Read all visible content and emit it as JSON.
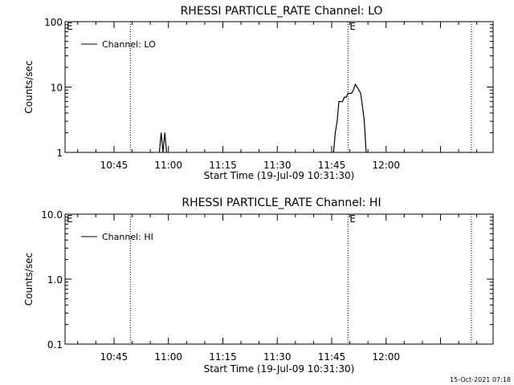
{
  "chart_data": [
    {
      "type": "line",
      "title": "RHESSI PARTICLE_RATE Channel: LO",
      "xlabel": "Start Time (19-Jul-09 10:31:30)",
      "ylabel": "Counts/sec",
      "yscale": "log",
      "ylim": [
        1,
        100
      ],
      "xlim": [
        "10:31:30",
        "12:29:30"
      ],
      "x_tick_labels": [
        "10:45",
        "11:00",
        "11:15",
        "11:30",
        "11:45",
        "12:00"
      ],
      "y_tick_labels": [
        "1",
        "10",
        "100"
      ],
      "y_tick_values": [
        1,
        10,
        100
      ],
      "legend": "Channel: LO",
      "legend_position": "top-left",
      "event_markers": [
        {
          "label": "E",
          "time": "10:31:30"
        },
        {
          "label": "E",
          "time": "11:49:30"
        }
      ],
      "vertical_lines": [
        "10:49:30",
        "11:49:30",
        "12:23:30"
      ],
      "series": [
        {
          "name": "Channel: LO",
          "points": [
            [
              "10:57:30",
              1
            ],
            [
              "10:58:00",
              2
            ],
            [
              "10:58:30",
              1
            ],
            [
              "10:59:00",
              2
            ],
            [
              "10:59:30",
              1
            ],
            [
              "11:45:30",
              1
            ],
            [
              "11:46:00",
              2
            ],
            [
              "11:46:30",
              3
            ],
            [
              "11:47:00",
              6
            ],
            [
              "11:47:30",
              6
            ],
            [
              "11:48:00",
              6
            ],
            [
              "11:48:30",
              7
            ],
            [
              "11:49:00",
              7
            ],
            [
              "11:49:30",
              8
            ],
            [
              "11:50:00",
              8
            ],
            [
              "11:50:30",
              8
            ],
            [
              "11:51:00",
              9
            ],
            [
              "11:51:30",
              11
            ],
            [
              "11:52:00",
              10
            ],
            [
              "11:52:30",
              9
            ],
            [
              "11:53:00",
              8
            ],
            [
              "11:53:30",
              5
            ],
            [
              "11:54:00",
              3
            ],
            [
              "11:54:30",
              1
            ]
          ]
        }
      ]
    },
    {
      "type": "line",
      "title": "RHESSI PARTICLE_RATE Channel: HI",
      "xlabel": "Start Time (19-Jul-09 10:31:30)",
      "ylabel": "Counts/sec",
      "yscale": "log",
      "ylim": [
        0.1,
        10
      ],
      "xlim": [
        "10:31:30",
        "12:29:30"
      ],
      "x_tick_labels": [
        "10:45",
        "11:00",
        "11:15",
        "11:30",
        "11:45",
        "12:00"
      ],
      "y_tick_labels": [
        "0.1",
        "1.0",
        "10.0"
      ],
      "y_tick_values": [
        0.1,
        1,
        10
      ],
      "legend": "Channel: HI",
      "legend_position": "top-left",
      "event_markers": [
        {
          "label": "E",
          "time": "10:31:30"
        },
        {
          "label": "E",
          "time": "11:49:30"
        }
      ],
      "vertical_lines": [
        "10:49:30",
        "11:49:30",
        "12:23:30"
      ],
      "series": [
        {
          "name": "Channel: HI",
          "points": []
        }
      ]
    }
  ],
  "footer_timestamp": "15-Oct-2021 07:18"
}
